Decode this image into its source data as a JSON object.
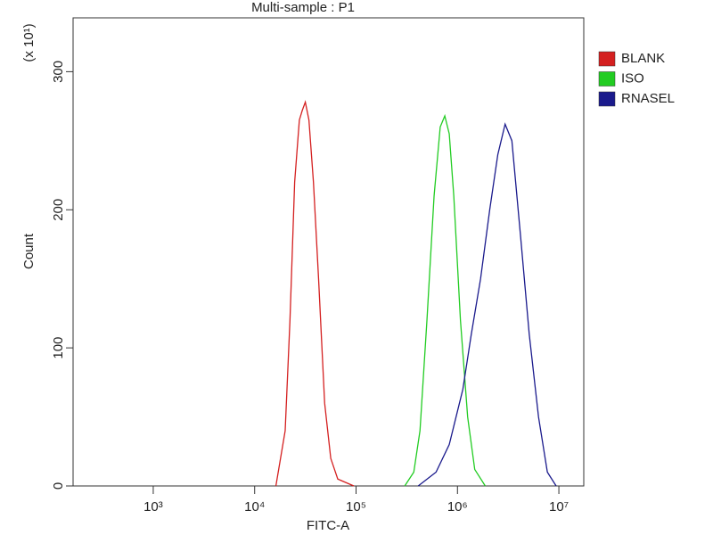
{
  "chart_data": {
    "type": "line",
    "title": "Multi-sample : P1",
    "xlabel": "FITC-A",
    "ylabel": "Count",
    "y_multiplier": "(x 10¹)",
    "xscale": "log",
    "xlim": [
      162,
      17600000
    ],
    "xticks": [
      {
        "value": 1000,
        "label": "10³"
      },
      {
        "value": 10000,
        "label": "10⁴"
      },
      {
        "value": 100000,
        "label": "10⁵"
      },
      {
        "value": 1000000,
        "label": "10⁶"
      },
      {
        "value": 10000000,
        "label": "10⁷"
      }
    ],
    "ylim": [
      0,
      339
    ],
    "yticks": [
      0,
      100,
      200,
      300
    ],
    "grid": false,
    "legend": "right",
    "series": [
      {
        "name": "BLANK",
        "color": "#d42020",
        "x": [
          16200,
          20000,
          22300,
          24800,
          27600,
          29500,
          31600,
          34300,
          38000,
          42700,
          49000,
          56300,
          66000,
          95000
        ],
        "values": [
          0,
          40,
          120,
          220,
          265,
          272,
          278,
          265,
          220,
          150,
          60,
          20,
          5,
          0
        ]
      },
      {
        "name": "ISO",
        "color": "#22cc22",
        "x": [
          302000,
          371000,
          427000,
          500000,
          588000,
          676000,
          750000,
          830000,
          920000,
          1070000,
          1260000,
          1480000,
          1880000
        ],
        "values": [
          0,
          10,
          40,
          120,
          210,
          260,
          268,
          255,
          210,
          120,
          50,
          12,
          0
        ]
      },
      {
        "name": "RNASEL",
        "color": "#1a1a8c",
        "x": [
          410000,
          615000,
          830000,
          1130000,
          1370000,
          1690000,
          2080000,
          2500000,
          2950000,
          3440000,
          4200000,
          5100000,
          6300000,
          7700000,
          9400000
        ],
        "values": [
          0,
          10,
          30,
          70,
          110,
          150,
          200,
          240,
          262,
          250,
          180,
          110,
          50,
          10,
          0
        ]
      }
    ]
  }
}
